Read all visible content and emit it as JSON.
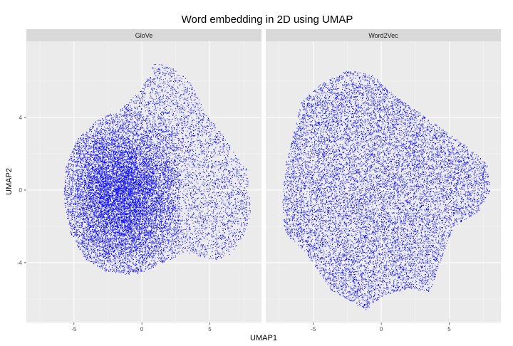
{
  "chart_data": {
    "type": "scatter",
    "title": "Word embedding in 2D using UMAP",
    "xlabel": "UMAP1",
    "ylabel": "UMAP2",
    "point_color": "#0000ff",
    "panel_background": "#ebebeb",
    "strip_background": "#d9d9d9",
    "grid": true,
    "legend": "none",
    "xlim": [
      -8.5,
      8.8
    ],
    "ylim": [
      -7.3,
      8.2
    ],
    "x_ticks": [
      {
        "value": -5,
        "label": "-5"
      },
      {
        "value": 0,
        "label": "0"
      },
      {
        "value": 5,
        "label": "5"
      }
    ],
    "y_ticks": [
      {
        "value": 4,
        "label": "4"
      },
      {
        "value": 0,
        "label": "0"
      },
      {
        "value": -4,
        "label": "-4"
      }
    ],
    "facets": [
      {
        "label": "GloVe",
        "point_cloud": {
          "x_range": [
            -5.8,
            8.0
          ],
          "y_range": [
            -4.7,
            7.1
          ],
          "dense_core_center": [
            -1.5,
            -0.3
          ]
        }
      },
      {
        "label": "Word2Vec",
        "point_cloud": {
          "x_range": [
            -7.3,
            8.0
          ],
          "y_range": [
            -6.7,
            6.7
          ],
          "dense_core_center": [
            0.2,
            0.0
          ]
        }
      }
    ]
  }
}
